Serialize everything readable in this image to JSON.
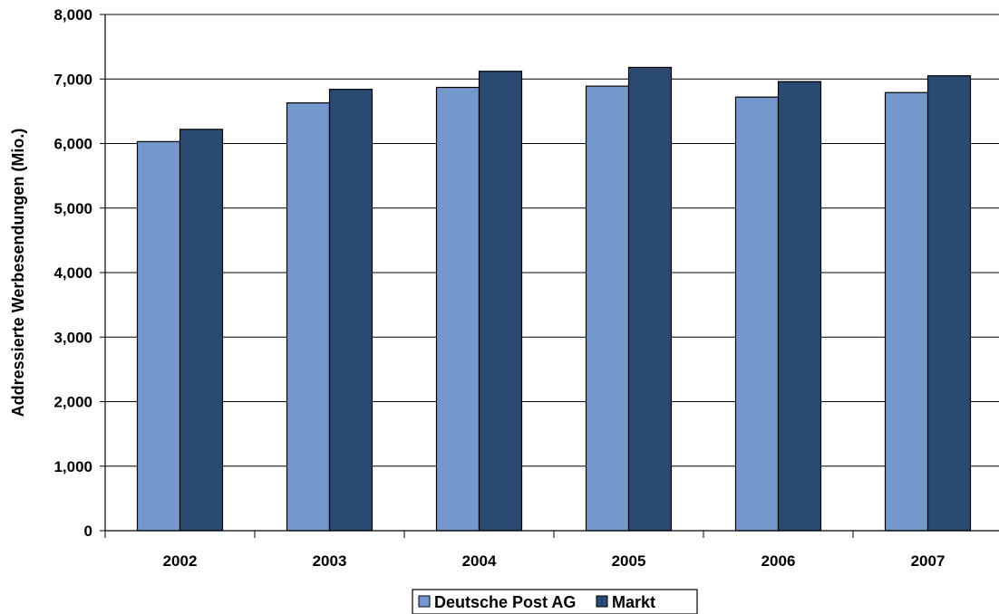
{
  "chart_data": {
    "type": "bar",
    "title": "",
    "xlabel": "",
    "ylabel": "Addressierte Werbesendungen (Mio.)",
    "categories": [
      "2002",
      "2003",
      "2004",
      "2005",
      "2006",
      "2007"
    ],
    "series": [
      {
        "name": "Deutsche Post AG",
        "color": "#7399cc",
        "values": [
          6030,
          6630,
          6870,
          6890,
          6720,
          6790
        ]
      },
      {
        "name": "Markt",
        "color": "#2b4a73",
        "values": [
          6220,
          6840,
          7120,
          7180,
          6960,
          7050
        ]
      }
    ],
    "ylim": [
      0,
      8000
    ],
    "yticks": [
      "0",
      "1,000",
      "2,000",
      "3,000",
      "4,000",
      "5,000",
      "6,000",
      "7,000",
      "8,000"
    ],
    "grid": true,
    "legend": "bottom"
  }
}
